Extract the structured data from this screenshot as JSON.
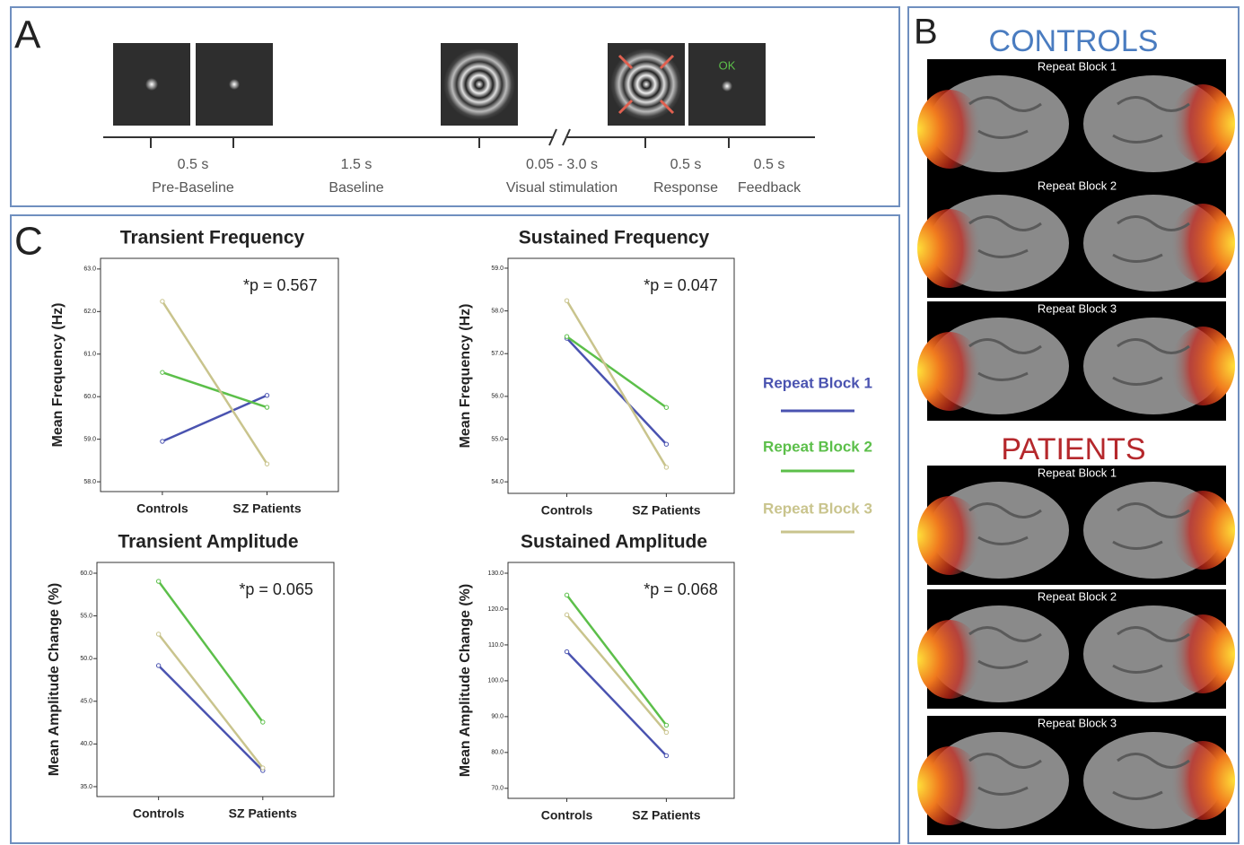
{
  "panel_a": {
    "label": "A",
    "ok": "OK",
    "phases": [
      {
        "duration": "0.5 s",
        "name": "Pre-Baseline"
      },
      {
        "duration": "1.5 s",
        "name": "Baseline"
      },
      {
        "duration": "0.05 - 3.0 s",
        "name": "Visual stimulation"
      },
      {
        "duration": "0.5 s",
        "name": "Response"
      },
      {
        "duration": "0.5 s",
        "name": "Feedback"
      }
    ]
  },
  "panel_b": {
    "label": "B",
    "groups": [
      {
        "title": "CONTROLS",
        "color": "#4a7cc0",
        "blocks": [
          "Repeat Block 1",
          "Repeat Block 2",
          "Repeat Block 3"
        ]
      },
      {
        "title": "PATIENTS",
        "color": "#b5282c",
        "blocks": [
          "Repeat Block 1",
          "Repeat Block 2",
          "Repeat Block 3"
        ]
      }
    ]
  },
  "panel_c": {
    "label": "C",
    "legend": [
      {
        "name": "Repeat Block 1",
        "color": "#4a53b0"
      },
      {
        "name": "Repeat Block 2",
        "color": "#5cbf4a"
      },
      {
        "name": "Repeat Block 3",
        "color": "#c9c48d"
      }
    ]
  },
  "chart_data": [
    {
      "type": "line",
      "title": "Transient Frequency",
      "y_label": "Mean Frequency (Hz)",
      "annotation": "*p = 0.567",
      "categories": [
        "Controls",
        "SZ Patients"
      ],
      "series": [
        {
          "color": "#4a53b0",
          "values": [
            58.95,
            60.03
          ]
        },
        {
          "color": "#5cbf4a",
          "values": [
            60.57,
            59.75
          ]
        },
        {
          "color": "#c9c48d",
          "values": [
            62.24,
            58.42
          ]
        }
      ],
      "ylim": [
        57.77,
        63.25
      ],
      "yticks": [
        {
          "value": 58,
          "label": "58.0"
        },
        {
          "value": 59,
          "label": "59.0"
        },
        {
          "value": 60,
          "label": "60.0"
        },
        {
          "value": 61,
          "label": "61.0"
        },
        {
          "value": 62,
          "label": "62.0"
        },
        {
          "value": 63,
          "label": "63.0"
        }
      ]
    },
    {
      "type": "line",
      "title": "Sustained Frequency",
      "y_label": "Mean Frequency (Hz)",
      "annotation": "*p = 0.047",
      "categories": [
        "Controls",
        "SZ Patients"
      ],
      "series": [
        {
          "color": "#4a53b0",
          "values": [
            57.36,
            54.88
          ]
        },
        {
          "color": "#5cbf4a",
          "values": [
            57.4,
            55.74
          ]
        },
        {
          "color": "#c9c48d",
          "values": [
            58.24,
            54.34
          ]
        }
      ],
      "ylim": [
        53.73,
        59.23
      ],
      "yticks": [
        {
          "value": 54,
          "label": "54.0"
        },
        {
          "value": 55,
          "label": "55.0"
        },
        {
          "value": 56,
          "label": "56.0"
        },
        {
          "value": 57,
          "label": "57.0"
        },
        {
          "value": 58,
          "label": "58.0"
        },
        {
          "value": 59,
          "label": "59.0"
        }
      ]
    },
    {
      "type": "line",
      "title": "Transient Amplitude",
      "y_label": "Mean Amplitude Change (%)",
      "annotation": "*p = 0.065",
      "categories": [
        "Controls",
        "SZ Patients"
      ],
      "series": [
        {
          "color": "#4a53b0",
          "values": [
            49.18,
            36.89
          ]
        },
        {
          "color": "#5cbf4a",
          "values": [
            59.05,
            42.56
          ]
        },
        {
          "color": "#c9c48d",
          "values": [
            52.86,
            37.2
          ]
        }
      ],
      "ylim": [
        33.84,
        61.26
      ],
      "yticks": [
        {
          "value": 35,
          "label": "35.0"
        },
        {
          "value": 40,
          "label": "40.0"
        },
        {
          "value": 45,
          "label": "45.0"
        },
        {
          "value": 50,
          "label": "50.0"
        },
        {
          "value": 55,
          "label": "55.0"
        },
        {
          "value": 60,
          "label": "60.0"
        }
      ]
    },
    {
      "type": "line",
      "title": "Sustained Amplitude",
      "y_label": "Mean Amplitude Change (%)",
      "annotation": "*p = 0.068",
      "categories": [
        "Controls",
        "SZ Patients"
      ],
      "series": [
        {
          "color": "#4a53b0",
          "values": [
            108.1,
            79.1
          ]
        },
        {
          "color": "#5cbf4a",
          "values": [
            123.9,
            87.6
          ]
        },
        {
          "color": "#c9c48d",
          "values": [
            118.4,
            85.6
          ]
        }
      ],
      "ylim": [
        67.2,
        133
      ],
      "yticks": [
        {
          "value": 70,
          "label": "70.0"
        },
        {
          "value": 80,
          "label": "80.0"
        },
        {
          "value": 90,
          "label": "90.0"
        },
        {
          "value": 100,
          "label": "100.0"
        },
        {
          "value": 110,
          "label": "110.0"
        },
        {
          "value": 120,
          "label": "120.0"
        },
        {
          "value": 130,
          "label": "130.0"
        }
      ]
    }
  ]
}
